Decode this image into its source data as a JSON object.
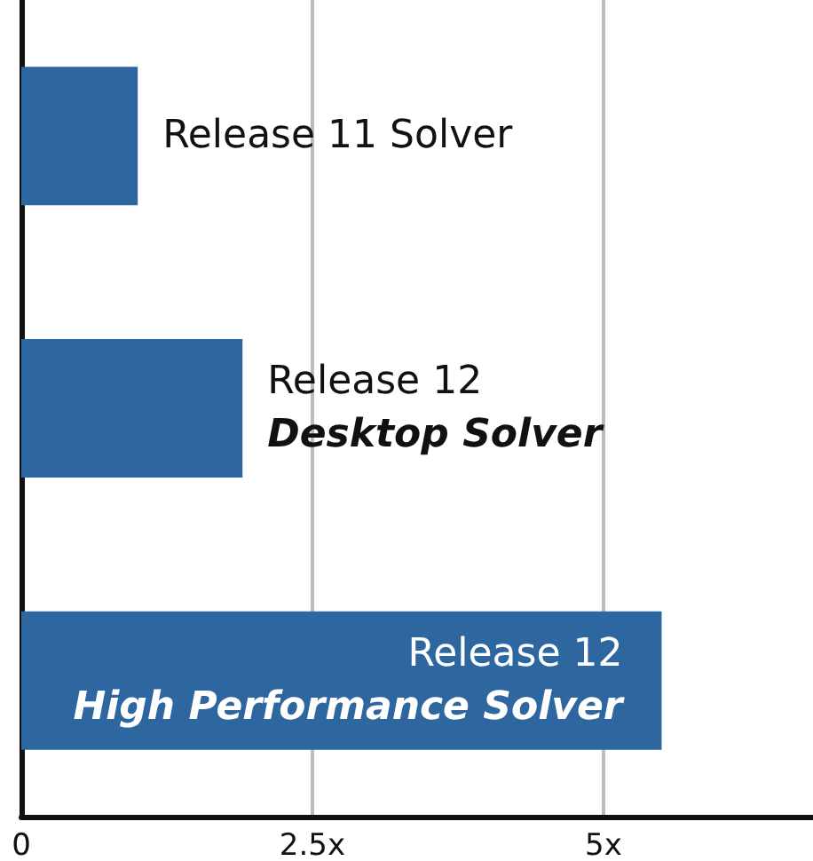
{
  "chart_data": {
    "type": "bar",
    "orientation": "horizontal",
    "categories": [
      "Release 11 Solver",
      "Release 12\nDesktop Solver",
      "Release 12\nHigh Performance Solver"
    ],
    "values": [
      1,
      1.9,
      5.5
    ],
    "color": "#2e67a0",
    "xlim": [
      0,
      6.8
    ],
    "xticks": [
      {
        "value": 0,
        "label": "0"
      },
      {
        "value": 2.5,
        "label": "2.5x"
      },
      {
        "value": 5,
        "label": "5x"
      }
    ],
    "grid": "x"
  }
}
